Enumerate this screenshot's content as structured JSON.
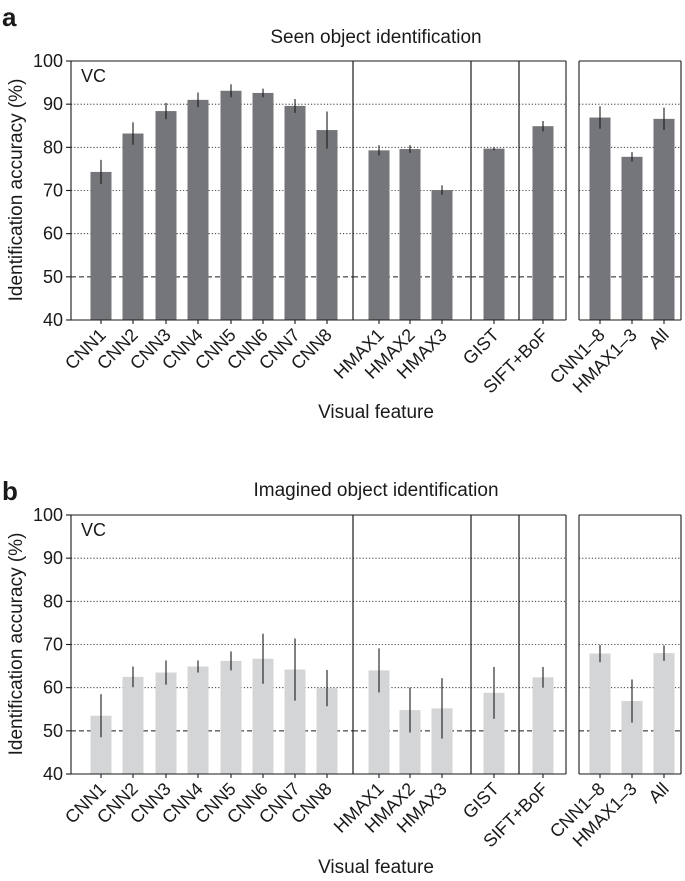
{
  "colors": {
    "seen_bar": "#757679",
    "imagined_bar": "#d4d5d6",
    "axis": "#1a1a1a",
    "error_bar": "#1a1a1a"
  },
  "chart_data": [
    {
      "panel": "a",
      "type": "bar",
      "title": "Seen object identification",
      "xlabel": "Visual feature",
      "ylabel": "Identification accuracy (%)",
      "annotation": "VC",
      "ylim": [
        40,
        100
      ],
      "yticks": [
        40,
        50,
        60,
        70,
        80,
        90,
        100
      ],
      "chance_level": 50,
      "grid": "horizontal dotted",
      "groups": [
        [
          "CNN1",
          "CNN2",
          "CNN3",
          "CNN4",
          "CNN5",
          "CNN6",
          "CNN7",
          "CNN8"
        ],
        [
          "HMAX1",
          "HMAX2",
          "HMAX3"
        ],
        [
          "GIST"
        ],
        [
          "SIFT+BoF"
        ],
        [
          "CNN1–8",
          "HMAX1–3",
          "All"
        ]
      ],
      "categories": [
        "CNN1",
        "CNN2",
        "CNN3",
        "CNN4",
        "CNN5",
        "CNN6",
        "CNN7",
        "CNN8",
        "HMAX1",
        "HMAX2",
        "HMAX3",
        "GIST",
        "SIFT+BoF",
        "CNN1–8",
        "HMAX1–3",
        "All"
      ],
      "values": [
        74.3,
        83.2,
        88.4,
        91.0,
        93.1,
        92.6,
        89.6,
        84.0,
        79.3,
        79.6,
        70.1,
        79.7,
        84.9,
        86.9,
        77.8,
        86.6
      ],
      "errors": [
        2.8,
        2.6,
        1.9,
        1.7,
        1.5,
        1.0,
        1.6,
        4.3,
        1.2,
        0.9,
        1.1,
        0.4,
        1.2,
        2.6,
        1.1,
        2.6
      ]
    },
    {
      "panel": "b",
      "type": "bar",
      "title": "Imagined object identification",
      "xlabel": "Visual feature",
      "ylabel": "Identification accuracy (%)",
      "annotation": "VC",
      "ylim": [
        40,
        100
      ],
      "yticks": [
        40,
        50,
        60,
        70,
        80,
        90,
        100
      ],
      "chance_level": 50,
      "grid": "horizontal dotted",
      "groups": [
        [
          "CNN1",
          "CNN2",
          "CNN3",
          "CNN4",
          "CNN5",
          "CNN6",
          "CNN7",
          "CNN8"
        ],
        [
          "HMAX1",
          "HMAX2",
          "HMAX3"
        ],
        [
          "GIST"
        ],
        [
          "SIFT+BoF"
        ],
        [
          "CNN1–8",
          "HMAX1–3",
          "All"
        ]
      ],
      "categories": [
        "CNN1",
        "CNN2",
        "CNN3",
        "CNN4",
        "CNN5",
        "CNN6",
        "CNN7",
        "CNN8",
        "HMAX1",
        "HMAX2",
        "HMAX3",
        "GIST",
        "SIFT+BoF",
        "CNN1–8",
        "HMAX1–3",
        "All"
      ],
      "values": [
        53.5,
        62.5,
        63.5,
        64.9,
        66.2,
        66.7,
        64.2,
        59.9,
        64.0,
        54.8,
        55.2,
        58.8,
        62.4,
        67.9,
        56.9,
        68.0
      ],
      "errors": [
        5.0,
        2.4,
        2.8,
        1.4,
        2.2,
        5.8,
        7.2,
        4.2,
        5.1,
        5.2,
        7.0,
        6.0,
        2.4,
        2.0,
        5.0,
        1.8
      ]
    }
  ]
}
